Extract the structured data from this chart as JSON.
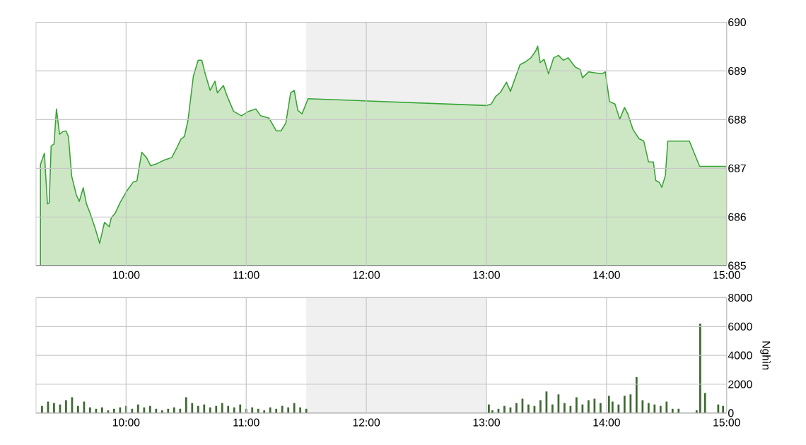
{
  "chart_data": [
    {
      "type": "area",
      "color": "#cde7c4",
      "grid": true,
      "xlim": [
        9.25,
        15
      ],
      "xticks": [
        {
          "value": 10,
          "label": "10:00"
        },
        {
          "value": 11,
          "label": "11:00"
        },
        {
          "value": 12,
          "label": "12:00"
        },
        {
          "value": 13,
          "label": "13:00"
        },
        {
          "value": 14,
          "label": "14:00"
        },
        {
          "value": 15,
          "label": "15:00"
        }
      ],
      "ylim": [
        685,
        690
      ],
      "yticks": [
        685,
        686,
        687,
        688,
        689,
        690
      ],
      "bands": [
        {
          "axis": "x",
          "from": 11.5,
          "to": 13,
          "color": "#f0f0f0"
        }
      ],
      "x": [
        9.287,
        9.32,
        9.345,
        9.36,
        9.376,
        9.4,
        9.42,
        9.446,
        9.47,
        9.5,
        9.52,
        9.547,
        9.585,
        9.61,
        9.643,
        9.67,
        9.7,
        9.74,
        9.78,
        9.82,
        9.86,
        9.876,
        9.91,
        9.953,
        10.01,
        10.06,
        10.09,
        10.13,
        10.17,
        10.205,
        10.26,
        10.32,
        10.38,
        10.42,
        10.457,
        10.485,
        10.515,
        10.56,
        10.6,
        10.63,
        10.66,
        10.7,
        10.74,
        10.76,
        10.81,
        10.845,
        10.895,
        10.96,
        11.02,
        11.08,
        11.12,
        11.19,
        11.25,
        11.29,
        11.33,
        11.37,
        11.4,
        11.43,
        11.465,
        11.515,
        13.0,
        13.04,
        13.078,
        13.117,
        13.167,
        13.2,
        13.245,
        13.28,
        13.32,
        13.37,
        13.41,
        13.427,
        13.447,
        13.48,
        13.517,
        13.56,
        13.6,
        13.64,
        13.68,
        13.74,
        13.78,
        13.8,
        13.85,
        13.91,
        13.96,
        13.99,
        14.025,
        14.07,
        14.11,
        14.15,
        14.18,
        14.22,
        14.27,
        14.31,
        14.35,
        14.39,
        14.41,
        14.44,
        14.46,
        14.49,
        14.51,
        14.69,
        14.775,
        15.0
      ],
      "values": [
        687.08,
        687.31,
        686.27,
        686.29,
        687.46,
        687.5,
        688.22,
        687.7,
        687.75,
        687.77,
        687.65,
        686.84,
        686.46,
        686.32,
        686.6,
        686.27,
        686.08,
        685.79,
        685.46,
        685.89,
        685.8,
        685.98,
        686.08,
        686.31,
        686.55,
        686.72,
        686.74,
        687.33,
        687.22,
        687.05,
        687.1,
        687.17,
        687.22,
        687.41,
        687.6,
        687.65,
        687.98,
        688.89,
        689.22,
        689.22,
        688.93,
        688.6,
        688.79,
        688.55,
        688.7,
        688.46,
        688.17,
        688.08,
        688.17,
        688.22,
        688.08,
        688.03,
        687.77,
        687.77,
        687.93,
        688.55,
        688.6,
        688.19,
        688.12,
        688.43,
        688.29,
        688.32,
        688.48,
        688.56,
        688.77,
        688.58,
        688.89,
        689.13,
        689.18,
        689.27,
        689.41,
        689.51,
        689.17,
        689.24,
        688.94,
        689.27,
        689.32,
        689.22,
        689.27,
        689.08,
        689.03,
        688.86,
        688.98,
        688.96,
        688.94,
        688.98,
        688.37,
        688.32,
        688.01,
        688.25,
        688.1,
        687.8,
        687.61,
        687.56,
        687.13,
        687.13,
        686.75,
        686.71,
        686.61,
        686.85,
        687.56,
        687.56,
        687.04,
        687.04
      ]
    },
    {
      "type": "bar",
      "color": "#3d6b31",
      "grid": true,
      "ylabel": "Nghìn",
      "xlim": [
        9.25,
        15
      ],
      "xticks": [
        {
          "value": 10,
          "label": "10:00"
        },
        {
          "value": 11,
          "label": "11:00"
        },
        {
          "value": 12,
          "label": "12:00"
        },
        {
          "value": 13,
          "label": "13:00"
        },
        {
          "value": 14,
          "label": "14:00"
        },
        {
          "value": 15,
          "label": "15:00"
        }
      ],
      "ylim": [
        0,
        8000
      ],
      "yticks": [
        0,
        2000,
        4000,
        6000,
        8000
      ],
      "bands": [
        {
          "axis": "x",
          "from": 11.5,
          "to": 13,
          "color": "#f0f0f0"
        }
      ],
      "x": [
        9.3,
        9.35,
        9.4,
        9.45,
        9.5,
        9.55,
        9.6,
        9.65,
        9.7,
        9.75,
        9.8,
        9.85,
        9.9,
        9.95,
        10.0,
        10.05,
        10.1,
        10.15,
        10.2,
        10.25,
        10.3,
        10.35,
        10.4,
        10.45,
        10.5,
        10.55,
        10.6,
        10.65,
        10.7,
        10.75,
        10.8,
        10.85,
        10.9,
        10.95,
        11.0,
        11.05,
        11.1,
        11.15,
        11.2,
        11.25,
        11.3,
        11.35,
        11.4,
        11.45,
        11.5,
        13.02,
        13.05,
        13.1,
        13.15,
        13.2,
        13.25,
        13.3,
        13.35,
        13.4,
        13.45,
        13.5,
        13.55,
        13.6,
        13.65,
        13.7,
        13.75,
        13.8,
        13.85,
        13.9,
        13.95,
        14.02,
        14.05,
        14.1,
        14.15,
        14.2,
        14.25,
        14.3,
        14.35,
        14.4,
        14.45,
        14.5,
        14.55,
        14.6,
        14.75,
        14.78,
        14.82,
        14.93,
        14.97
      ],
      "values": [
        500,
        800,
        700,
        600,
        900,
        1100,
        500,
        800,
        400,
        300,
        400,
        200,
        300,
        400,
        500,
        300,
        600,
        400,
        500,
        300,
        200,
        300,
        400,
        300,
        1100,
        700,
        500,
        600,
        400,
        500,
        700,
        500,
        400,
        600,
        300,
        400,
        300,
        200,
        400,
        300,
        500,
        400,
        700,
        400,
        300,
        600,
        200,
        300,
        500,
        400,
        700,
        1000,
        600,
        500,
        900,
        1500,
        600,
        1300,
        700,
        500,
        1100,
        600,
        900,
        1000,
        700,
        1200,
        800,
        600,
        1200,
        1300,
        2500,
        900,
        700,
        600,
        500,
        800,
        300,
        300,
        200,
        6200,
        1400,
        600,
        500
      ]
    }
  ]
}
